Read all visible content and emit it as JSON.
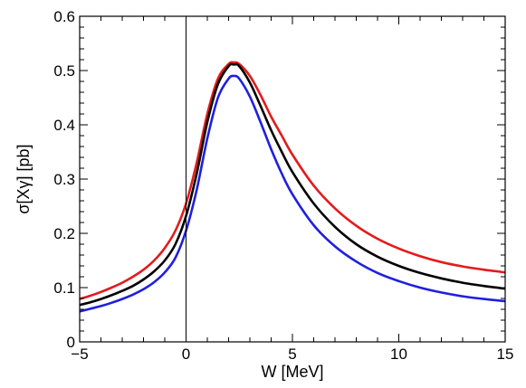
{
  "chart_data": {
    "type": "line",
    "title": "",
    "xlabel": "W [MeV]",
    "ylabel": "σ[Xγ] [pb]",
    "xlim": [
      -5,
      15
    ],
    "ylim": [
      0,
      0.6
    ],
    "x_ticks": [
      "−5",
      "0",
      "5",
      "10",
      "15"
    ],
    "y_ticks": [
      "0",
      "0.1",
      "0.2",
      "0.3",
      "0.4",
      "0.5",
      "0.6"
    ],
    "grid": false,
    "legend": "none",
    "reference_lines": [
      {
        "orientation": "vertical",
        "x": 0
      }
    ],
    "series": [
      {
        "color": "#e41a1c",
        "x": [
          -5,
          -4.5,
          -4,
          -3.5,
          -3,
          -2.5,
          -2,
          -1.5,
          -1,
          -0.5,
          0,
          0.5,
          1,
          1.5,
          2,
          2.25,
          2.5,
          3,
          3.5,
          4,
          4.5,
          5,
          6,
          7,
          8,
          9,
          10,
          11,
          12,
          13,
          14,
          15
        ],
        "values": [
          0.079,
          0.085,
          0.092,
          0.1,
          0.109,
          0.12,
          0.133,
          0.15,
          0.173,
          0.205,
          0.255,
          0.33,
          0.42,
          0.485,
          0.512,
          0.515,
          0.512,
          0.49,
          0.455,
          0.415,
          0.38,
          0.345,
          0.288,
          0.246,
          0.214,
          0.19,
          0.172,
          0.158,
          0.147,
          0.139,
          0.133,
          0.128
        ]
      },
      {
        "color": "#000000",
        "x": [
          -5,
          -4.5,
          -4,
          -3.5,
          -3,
          -2.5,
          -2,
          -1.5,
          -1,
          -0.5,
          0,
          0.5,
          1,
          1.5,
          2,
          2.25,
          2.5,
          3,
          3.5,
          4,
          4.5,
          5,
          6,
          7,
          8,
          9,
          10,
          11,
          12,
          13,
          14,
          15
        ],
        "values": [
          0.068,
          0.073,
          0.079,
          0.086,
          0.094,
          0.103,
          0.115,
          0.13,
          0.15,
          0.18,
          0.232,
          0.31,
          0.405,
          0.475,
          0.508,
          0.511,
          0.508,
          0.478,
          0.435,
          0.39,
          0.35,
          0.313,
          0.255,
          0.212,
          0.18,
          0.157,
          0.14,
          0.127,
          0.117,
          0.109,
          0.103,
          0.098
        ]
      },
      {
        "color": "#1f1fe0",
        "x": [
          -5,
          -4.5,
          -4,
          -3.5,
          -3,
          -2.5,
          -2,
          -1.5,
          -1,
          -0.5,
          0,
          0.5,
          1,
          1.5,
          2,
          2.25,
          2.5,
          3,
          3.5,
          4,
          4.5,
          5,
          6,
          7,
          8,
          9,
          10,
          11,
          12,
          13,
          14,
          15
        ],
        "values": [
          0.056,
          0.061,
          0.066,
          0.072,
          0.079,
          0.087,
          0.097,
          0.11,
          0.128,
          0.155,
          0.205,
          0.28,
          0.375,
          0.45,
          0.485,
          0.49,
          0.485,
          0.452,
          0.405,
          0.355,
          0.31,
          0.272,
          0.215,
          0.176,
          0.148,
          0.127,
          0.112,
          0.1,
          0.091,
          0.084,
          0.079,
          0.075
        ]
      }
    ]
  }
}
